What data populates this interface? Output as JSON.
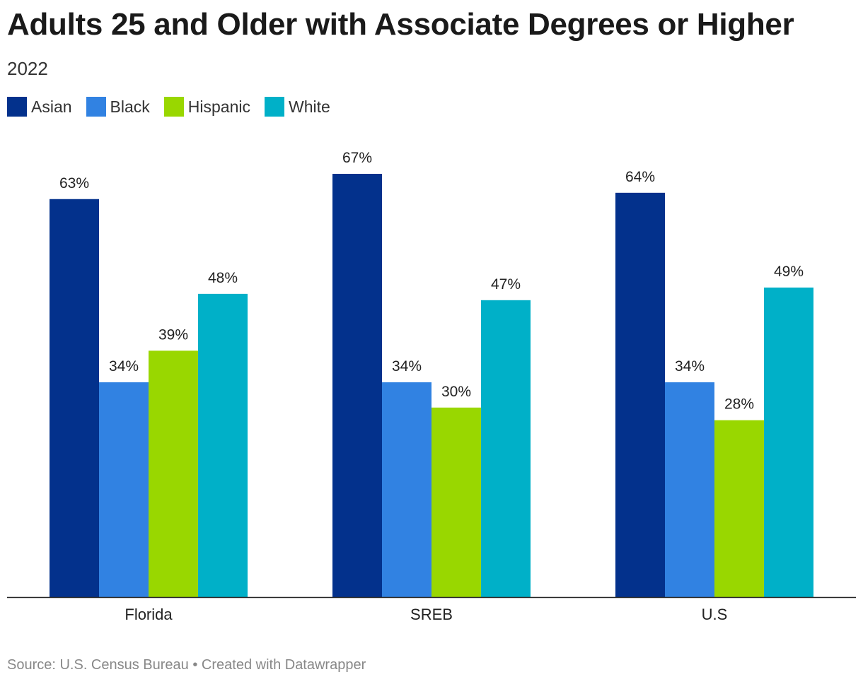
{
  "title": "Adults 25 and Older with Associate Degrees or Higher",
  "subtitle": "2022",
  "source": "Source: U.S. Census Bureau • Created with Datawrapper",
  "chart_data": {
    "type": "bar",
    "categories": [
      "Florida",
      "SREB",
      "U.S"
    ],
    "series": [
      {
        "name": "Asian",
        "color": "#03318c",
        "values": [
          63,
          67,
          64
        ]
      },
      {
        "name": "Black",
        "color": "#3182e2",
        "values": [
          34,
          34,
          34
        ]
      },
      {
        "name": "Hispanic",
        "color": "#99d700",
        "values": [
          39,
          30,
          28
        ]
      },
      {
        "name": "White",
        "color": "#00b0c8",
        "values": [
          48,
          47,
          49
        ]
      }
    ],
    "value_suffix": "%",
    "ylim": [
      0,
      67
    ],
    "grid": false,
    "legend_position": "top-left",
    "xlabel": "",
    "ylabel": ""
  }
}
